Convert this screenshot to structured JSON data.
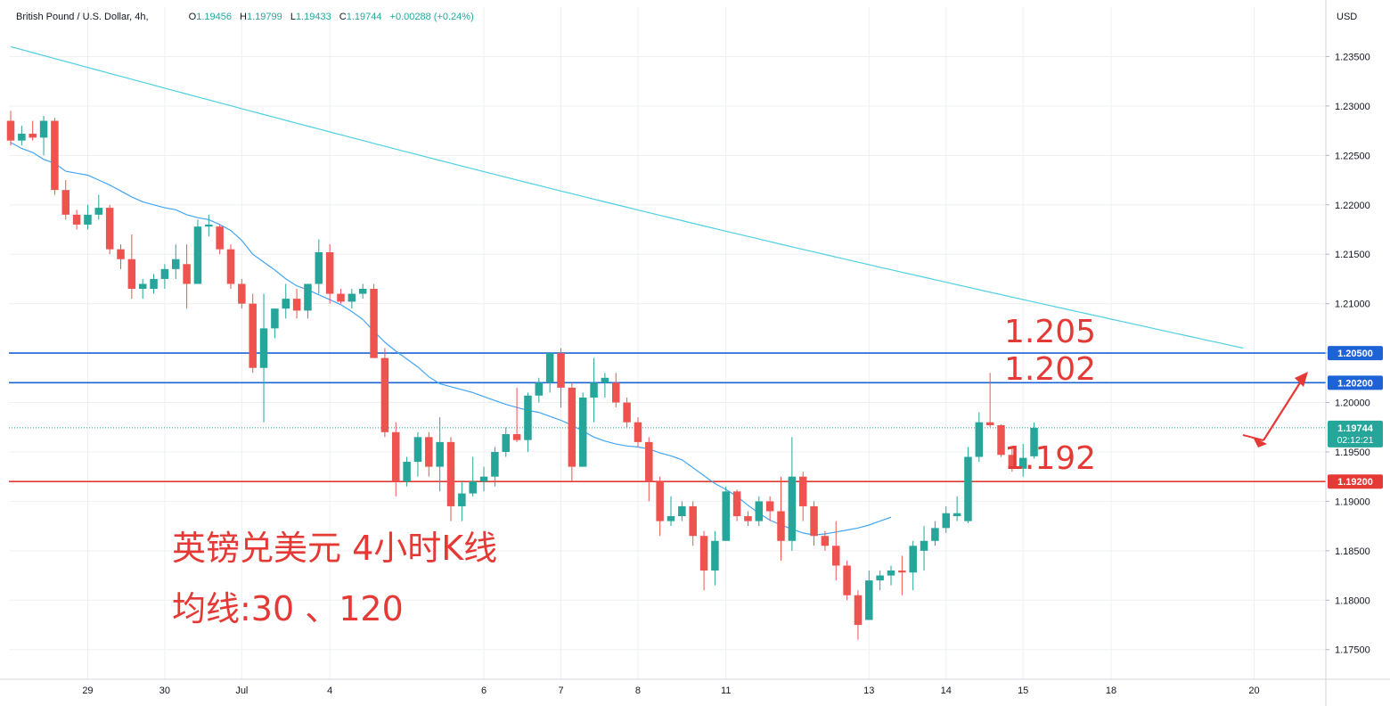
{
  "header": {
    "symbol": "British Pound / U.S. Dollar, 4h,",
    "open_label": "O",
    "open": "1.19456",
    "high_label": "H",
    "high": "1.19799",
    "low_label": "L",
    "low": "1.19433",
    "close_label": "C",
    "close": "1.19744",
    "change": "+0.00288 (+0.24%)",
    "currency": "USD"
  },
  "annotations": {
    "level_1205": "1.205",
    "level_1202": "1.202",
    "level_1192": "1.192",
    "title_line1": "英镑兑美元 4小时K线",
    "title_line2": "均线:30 、120"
  },
  "colors": {
    "up": "#26a69a",
    "down": "#ef5350",
    "ma30": "#42a5f5",
    "ma120": "#4dd0e1",
    "resistance": "#1e63d6",
    "support": "#e53935",
    "arrow": "#e53935"
  },
  "chart_data": {
    "type": "candlestick",
    "timeframe": "4h",
    "y_axis": {
      "min": 1.172,
      "max": 1.24,
      "ticks": [
        "1.23500",
        "1.23000",
        "1.22500",
        "1.22000",
        "1.21500",
        "1.21000",
        "1.20500",
        "1.20000",
        "1.19500",
        "1.19000",
        "1.18500",
        "1.18000",
        "1.17500"
      ]
    },
    "x_axis": {
      "labels": [
        {
          "label": "29",
          "bar": 7
        },
        {
          "label": "30",
          "bar": 14
        },
        {
          "label": "Jul",
          "bar": 21
        },
        {
          "label": "4",
          "bar": 29
        },
        {
          "label": "6",
          "bar": 43
        },
        {
          "label": "7",
          "bar": 50
        },
        {
          "label": "8",
          "bar": 57
        },
        {
          "label": "11",
          "bar": 65
        },
        {
          "label": "13",
          "bar": 78
        },
        {
          "label": "14",
          "bar": 85
        },
        {
          "label": "15",
          "bar": 92
        },
        {
          "label": "18",
          "bar": 100
        },
        {
          "label": "20",
          "bar": 113
        }
      ]
    },
    "price_tags": [
      {
        "value": "1.20500",
        "color": "#1e63d6"
      },
      {
        "value": "1.20200",
        "color": "#1e63d6"
      },
      {
        "value": "1.19744",
        "sub": "02:12:21",
        "color": "#26a69a"
      },
      {
        "value": "1.19200",
        "color": "#e53935"
      }
    ],
    "horizontal_lines": [
      {
        "price": 1.205,
        "color": "#1e63d6"
      },
      {
        "price": 1.202,
        "color": "#1e63d6"
      },
      {
        "price": 1.192,
        "color": "#e53935"
      }
    ],
    "last_price": 1.19744,
    "candles": [
      [
        1.2285,
        1.2295,
        1.226,
        1.2265
      ],
      [
        1.2265,
        1.228,
        1.226,
        1.2272
      ],
      [
        1.2272,
        1.2285,
        1.2265,
        1.2268
      ],
      [
        1.2268,
        1.229,
        1.225,
        1.2285
      ],
      [
        1.2285,
        1.2288,
        1.221,
        1.2215
      ],
      [
        1.2215,
        1.2225,
        1.2185,
        1.219
      ],
      [
        1.219,
        1.2195,
        1.2175,
        1.218
      ],
      [
        1.218,
        1.22,
        1.2175,
        1.219
      ],
      [
        1.219,
        1.221,
        1.2185,
        1.2197
      ],
      [
        1.2197,
        1.22,
        1.215,
        1.2155
      ],
      [
        1.2155,
        1.216,
        1.2135,
        1.2145
      ],
      [
        1.2145,
        1.217,
        1.2105,
        1.2115
      ],
      [
        1.2115,
        1.2125,
        1.2105,
        1.212
      ],
      [
        1.2115,
        1.213,
        1.211,
        1.2125
      ],
      [
        1.2125,
        1.214,
        1.2115,
        1.2135
      ],
      [
        1.2135,
        1.216,
        1.2125,
        1.2145
      ],
      [
        1.214,
        1.216,
        1.2095,
        1.212
      ],
      [
        1.212,
        1.2185,
        1.212,
        1.2178
      ],
      [
        1.2178,
        1.219,
        1.2168,
        1.218
      ],
      [
        1.2178,
        1.218,
        1.215,
        1.2155
      ],
      [
        1.2155,
        1.216,
        1.2115,
        1.212
      ],
      [
        1.212,
        1.2125,
        1.2095,
        1.21
      ],
      [
        1.21,
        1.211,
        1.203,
        1.2035
      ],
      [
        1.2035,
        1.211,
        1.198,
        1.2075
      ],
      [
        1.2075,
        1.2095,
        1.2065,
        1.2095
      ],
      [
        1.2095,
        1.212,
        1.2085,
        1.2105
      ],
      [
        1.2105,
        1.2115,
        1.2085,
        1.2093
      ],
      [
        1.2093,
        1.212,
        1.2085,
        1.212
      ],
      [
        1.212,
        1.2165,
        1.211,
        1.2152
      ],
      [
        1.2152,
        1.216,
        1.21,
        1.211
      ],
      [
        1.211,
        1.2115,
        1.21,
        1.2102
      ],
      [
        1.2102,
        1.2115,
        1.2095,
        1.211
      ],
      [
        1.211,
        1.212,
        1.2105,
        1.2115
      ],
      [
        1.2115,
        1.212,
        1.2045,
        1.2045
      ],
      [
        1.2045,
        1.2055,
        1.1965,
        1.197
      ],
      [
        1.197,
        1.198,
        1.1905,
        1.192
      ],
      [
        1.192,
        1.1945,
        1.1915,
        1.194
      ],
      [
        1.194,
        1.197,
        1.1925,
        1.1965
      ],
      [
        1.1965,
        1.197,
        1.1925,
        1.1935
      ],
      [
        1.1935,
        1.1985,
        1.191,
        1.196
      ],
      [
        1.196,
        1.1965,
        1.188,
        1.1895
      ],
      [
        1.1895,
        1.192,
        1.188,
        1.1908
      ],
      [
        1.1908,
        1.1945,
        1.1905,
        1.192
      ],
      [
        1.192,
        1.1935,
        1.191,
        1.1925
      ],
      [
        1.1925,
        1.1955,
        1.1915,
        1.195
      ],
      [
        1.195,
        1.1975,
        1.1945,
        1.1968
      ],
      [
        1.1968,
        1.2015,
        1.196,
        1.1962
      ],
      [
        1.1962,
        1.201,
        1.195,
        1.2007
      ],
      [
        1.2007,
        1.2025,
        1.2,
        1.202
      ],
      [
        1.202,
        1.205,
        1.201,
        1.205
      ],
      [
        1.205,
        1.2055,
        1.1995,
        1.2015
      ],
      [
        1.2015,
        1.202,
        1.192,
        1.1935
      ],
      [
        1.1935,
        1.201,
        1.1935,
        1.2005
      ],
      [
        1.2005,
        1.2045,
        1.198,
        1.202
      ],
      [
        1.202,
        1.203,
        1.2005,
        1.2025
      ],
      [
        1.202,
        1.203,
        1.1995,
        1.2
      ],
      [
        1.2,
        1.2005,
        1.1975,
        1.198
      ],
      [
        1.198,
        1.1985,
        1.1955,
        1.196
      ],
      [
        1.196,
        1.1965,
        1.19,
        1.192
      ],
      [
        1.192,
        1.1925,
        1.1865,
        1.188
      ],
      [
        1.188,
        1.1905,
        1.1875,
        1.1885
      ],
      [
        1.1885,
        1.19,
        1.188,
        1.1895
      ],
      [
        1.1895,
        1.19,
        1.1855,
        1.1865
      ],
      [
        1.1865,
        1.187,
        1.181,
        1.183
      ],
      [
        1.183,
        1.187,
        1.1815,
        1.186
      ],
      [
        1.186,
        1.1915,
        1.186,
        1.191
      ],
      [
        1.191,
        1.1912,
        1.188,
        1.1885
      ],
      [
        1.1885,
        1.189,
        1.1875,
        1.188
      ],
      [
        1.188,
        1.1905,
        1.1875,
        1.19
      ],
      [
        1.19,
        1.1905,
        1.188,
        1.189
      ],
      [
        1.189,
        1.1925,
        1.184,
        1.186
      ],
      [
        1.186,
        1.1965,
        1.185,
        1.1925
      ],
      [
        1.1925,
        1.193,
        1.188,
        1.1895
      ],
      [
        1.1895,
        1.19,
        1.1855,
        1.1865
      ],
      [
        1.1865,
        1.187,
        1.185,
        1.1855
      ],
      [
        1.1855,
        1.188,
        1.182,
        1.1835
      ],
      [
        1.1835,
        1.184,
        1.18,
        1.1805
      ],
      [
        1.1805,
        1.181,
        1.176,
        1.1775
      ],
      [
        1.178,
        1.183,
        1.178,
        1.182
      ],
      [
        1.182,
        1.183,
        1.181,
        1.1825
      ],
      [
        1.1825,
        1.1835,
        1.1815,
        1.183
      ],
      [
        1.183,
        1.1845,
        1.1805,
        1.1828
      ],
      [
        1.1828,
        1.186,
        1.181,
        1.1855
      ],
      [
        1.185,
        1.1875,
        1.183,
        1.186
      ],
      [
        1.186,
        1.188,
        1.1855,
        1.1873
      ],
      [
        1.1873,
        1.1895,
        1.1868,
        1.1888
      ],
      [
        1.1885,
        1.1905,
        1.188,
        1.1888
      ],
      [
        1.188,
        1.1955,
        1.1878,
        1.1945
      ],
      [
        1.1945,
        1.199,
        1.194,
        1.198
      ],
      [
        1.198,
        1.203,
        1.1975,
        1.1977
      ],
      [
        1.1977,
        1.1978,
        1.1945,
        1.1947
      ],
      [
        1.1947,
        1.1955,
        1.193,
        1.1933
      ],
      [
        1.1933,
        1.1958,
        1.1925,
        1.1944
      ],
      [
        1.19456,
        1.19799,
        1.19433,
        1.19744
      ]
    ],
    "ma30": [
      1.2263,
      1.2257,
      1.2253,
      1.2246,
      1.2242,
      1.2234,
      1.2232,
      1.223,
      1.2225,
      1.222,
      1.2214,
      1.2208,
      1.2203,
      1.22,
      1.2197,
      1.2195,
      1.219,
      1.2187,
      1.2185,
      1.218,
      1.2174,
      1.2164,
      1.215,
      1.2142,
      1.2134,
      1.2125,
      1.2118,
      1.2114,
      1.2109,
      1.2104,
      1.2099,
      1.2092,
      1.2084,
      1.2072,
      1.2061,
      1.2052,
      1.2044,
      1.2036,
      1.2026,
      1.2019,
      1.2016,
      1.2013,
      1.201,
      1.2006,
      1.2002,
      1.1998,
      1.1995,
      1.1992,
      1.199,
      1.1986,
      1.1982,
      1.1977,
      1.1971,
      1.1965,
      1.1961,
      1.1958,
      1.1956,
      1.1955,
      1.1953,
      1.1949,
      1.1946,
      1.1942,
      1.1934,
      1.1926,
      1.1918,
      1.1912,
      1.1905,
      1.1896,
      1.1888,
      1.1881,
      1.1876,
      1.1872,
      1.1868,
      1.1866,
      1.1867,
      1.1869,
      1.1871,
      1.1873,
      1.1876,
      1.188,
      1.1884
    ]
  }
}
